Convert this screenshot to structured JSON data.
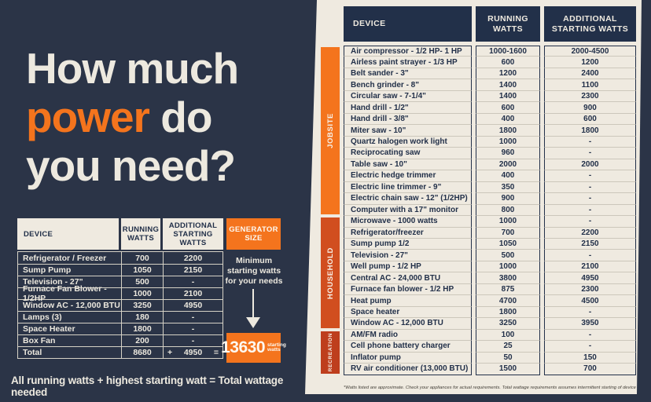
{
  "colors": {
    "background": "#2B3447",
    "cream": "#EFEAE0",
    "navy": "#223049",
    "orange_bright": "#F4741D",
    "orange_mid": "#D14E1F",
    "orange_dark": "#BE3E1D"
  },
  "title": {
    "line1": "How much",
    "highlight": "power",
    "line2_rest": " do",
    "line3": "you need?"
  },
  "worksheet": {
    "headers": [
      "DEVICE",
      "RUNNING WATTS",
      "ADDITIONAL STARTING WATTS"
    ],
    "rows": [
      [
        "Refrigerator / Freezer",
        "700",
        "2200"
      ],
      [
        "Sump Pump",
        "1050",
        "2150"
      ],
      [
        "Television - 27\"",
        "500",
        "-"
      ],
      [
        "Furnace Fan Blower - 1/2HP",
        "1000",
        "2100"
      ],
      [
        "Window AC - 12,000 BTU",
        "3250",
        "4950"
      ],
      [
        "Lamps (3)",
        "180",
        "-"
      ],
      [
        "Space Heater",
        "1800",
        "-"
      ],
      [
        "Box Fan",
        "200",
        "-"
      ]
    ],
    "total": {
      "label": "Total",
      "running": "8680",
      "plus": "+",
      "starting": "4950",
      "equals": "="
    }
  },
  "generator": {
    "header": "GENERATOR SIZE",
    "note": "Minimum starting watts for your needs",
    "total_watts": "13630",
    "unit_line1": "starting",
    "unit_line2": "watts"
  },
  "formula": "All running watts + highest starting watt = Total wattage needed",
  "reference": {
    "headers": [
      "DEVICE",
      "RUNNING WATTS",
      "ADDITIONAL STARTING WATTS"
    ],
    "categories": [
      {
        "label": "JOBSITE",
        "color": "#F4741D",
        "rows": [
          [
            "Air compressor - 1/2 HP- 1 HP",
            "1000-1600",
            "2000-4500"
          ],
          [
            "Airless paint strayer - 1/3 HP",
            "600",
            "1200"
          ],
          [
            "Belt sander - 3\"",
            "1200",
            "2400"
          ],
          [
            "Bench grinder - 8\"",
            "1400",
            "1100"
          ],
          [
            "Circular saw - 7-1/4\"",
            "1400",
            "2300"
          ],
          [
            "Hand drill - 1/2\"",
            "600",
            "900"
          ],
          [
            "Hand drill - 3/8\"",
            "400",
            "600"
          ],
          [
            "Miter saw - 10\"",
            "1800",
            "1800"
          ],
          [
            "Quartz halogen work light",
            "1000",
            "-"
          ],
          [
            "Reciprocating saw",
            "960",
            "-"
          ],
          [
            "Table saw - 10\"",
            "2000",
            "2000"
          ],
          [
            "Electric hedge trimmer",
            "400",
            "-"
          ],
          [
            "Electric line trimmer - 9\"",
            "350",
            "-"
          ],
          [
            "Electric chain saw - 12\" (1/2HP)",
            "900",
            "-"
          ],
          [
            "Computer with a 17\" monitor",
            "800",
            "-"
          ]
        ]
      },
      {
        "label": "HOUSEHOLD",
        "color": "#D14E1F",
        "rows": [
          [
            "Microwave - 1000 watts",
            "1000",
            "-"
          ],
          [
            "Refrigerator/freezer",
            "700",
            "2200"
          ],
          [
            "Sump pump 1/2",
            "1050",
            "2150"
          ],
          [
            "Television - 27\"",
            "500",
            "-"
          ],
          [
            "Well pump - 1/2 HP",
            "1000",
            "2100"
          ],
          [
            "Central AC - 24,000 BTU",
            "3800",
            "4950"
          ],
          [
            "Furnace fan blower - 1/2 HP",
            "875",
            "2300"
          ],
          [
            "Heat pump",
            "4700",
            "4500"
          ],
          [
            "Space heater",
            "1800",
            "-"
          ],
          [
            "Window AC - 12,000 BTU",
            "3250",
            "3950"
          ]
        ]
      },
      {
        "label": "RECREATION",
        "color": "#BE3E1D",
        "rows": [
          [
            "AM/FM radio",
            "100",
            "-"
          ],
          [
            "Cell phone battery charger",
            "25",
            "-"
          ],
          [
            "Inflator pump",
            "50",
            "150"
          ],
          [
            "RV air conditioner (13,000 BTU)",
            "1500",
            "700"
          ]
        ]
      }
    ],
    "footnote": "*Watts listed are approximate. Check your appliances for actual requirements. Total wattage requirements assumes intermittent starting of devices."
  }
}
